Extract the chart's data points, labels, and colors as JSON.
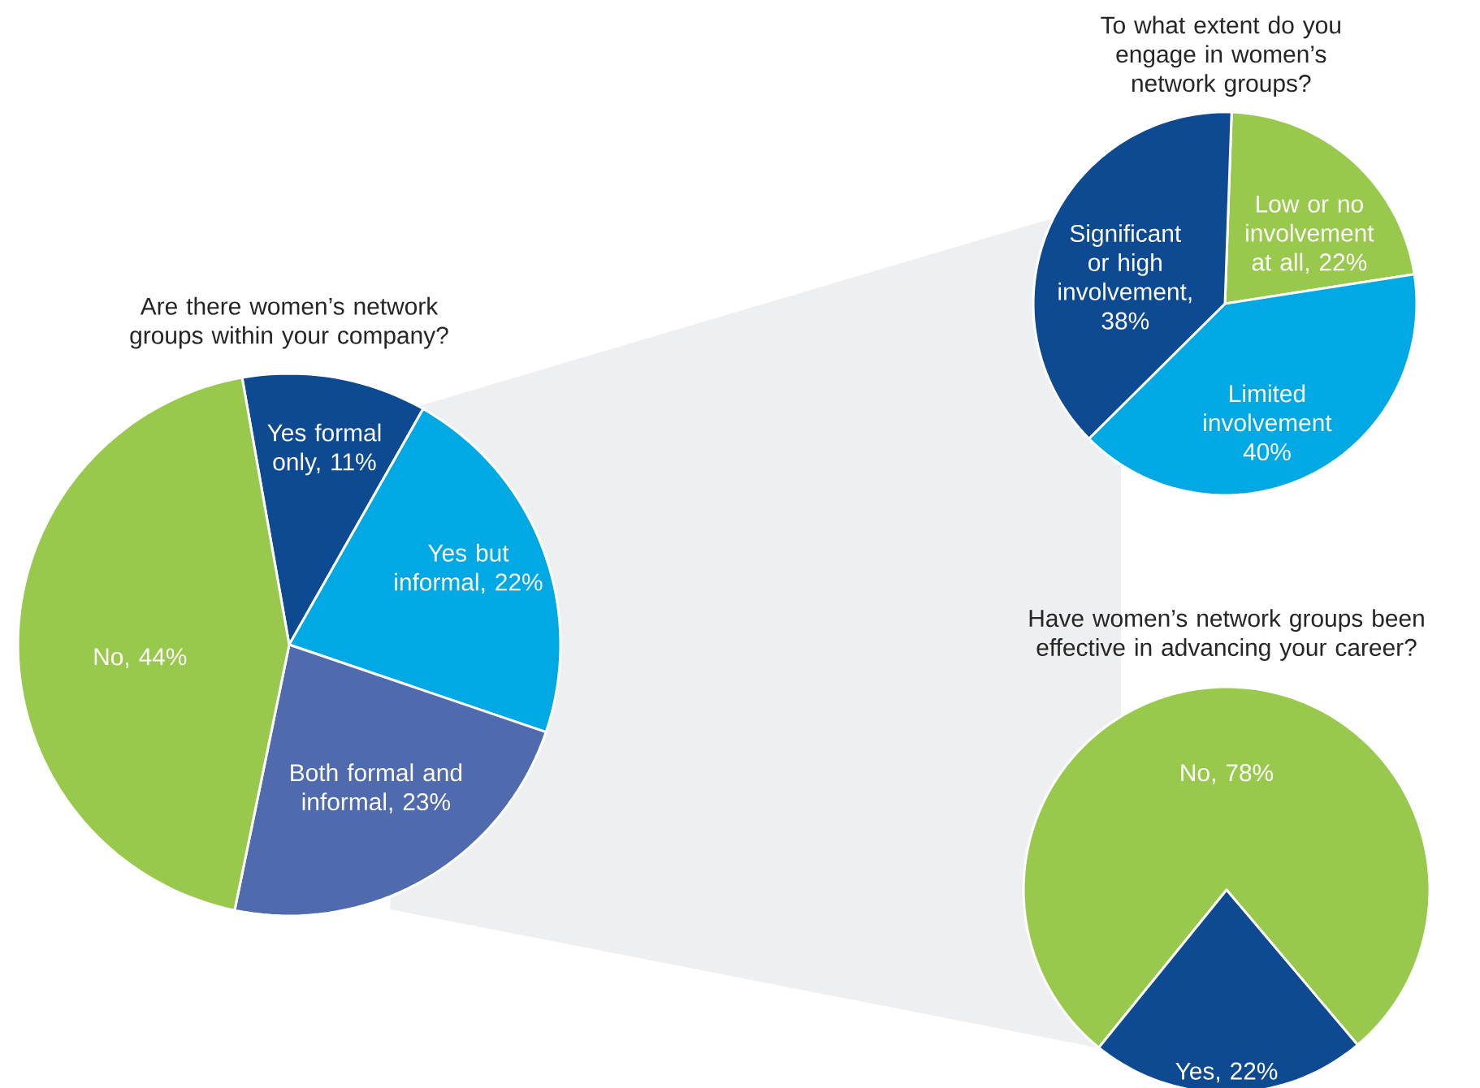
{
  "chart_data": [
    {
      "type": "pie",
      "title": "Are there women’s network groups within your company?",
      "categories": [
        "Yes formal only, 11%",
        "Yes but informal, 22%",
        "Both formal and informal, 23%",
        "No, 44%"
      ],
      "values": [
        11,
        22,
        23,
        44
      ],
      "colors": [
        "#0d4a91",
        "#00a9e3",
        "#4f6aad",
        "#99c94c"
      ]
    },
    {
      "type": "pie",
      "title": "To what extent do you engage in women’s network groups?",
      "categories": [
        "Low or no involvement at all, 22%",
        "Limited involvement 40%",
        "Significant or high involvement, 38%"
      ],
      "values": [
        22,
        40,
        38
      ],
      "colors": [
        "#99c94c",
        "#00a9e3",
        "#0d4a91"
      ]
    },
    {
      "type": "pie",
      "title": "Have women’s network groups been effective in advancing your career?",
      "categories": [
        "No, 78%",
        "Yes, 22%"
      ],
      "values": [
        78,
        22
      ],
      "colors": [
        "#99c94c",
        "#0d4a91"
      ]
    }
  ]
}
